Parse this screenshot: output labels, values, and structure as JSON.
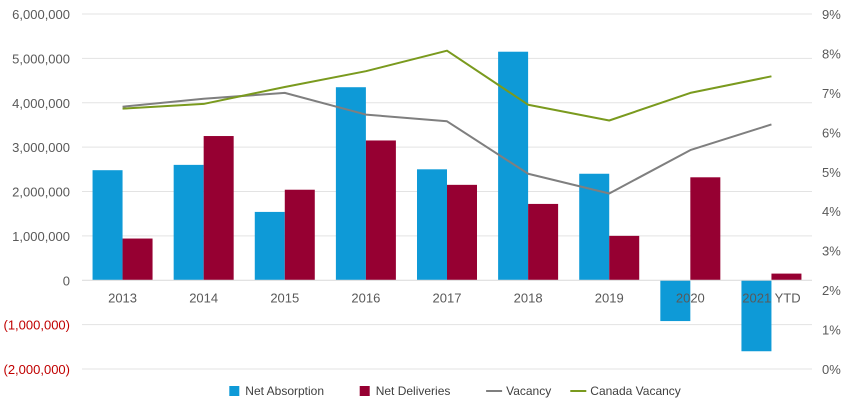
{
  "chart_data": {
    "type": "bar",
    "title": "",
    "categories": [
      "2013",
      "2014",
      "2015",
      "2016",
      "2017",
      "2018",
      "2019",
      "2020",
      "2021 YTD"
    ],
    "series": [
      {
        "name": "Net Absorption",
        "type": "bar",
        "axis": "left",
        "color": "#0e9ad7",
        "values": [
          2480000,
          2600000,
          1540000,
          4350000,
          2500000,
          5150000,
          2400000,
          -920000,
          -1600000
        ]
      },
      {
        "name": "Net Deliveries",
        "type": "bar",
        "axis": "left",
        "color": "#960032",
        "values": [
          940000,
          3250000,
          2040000,
          3150000,
          2150000,
          1720000,
          1000000,
          2320000,
          150000
        ]
      },
      {
        "name": "Vacancy",
        "type": "line",
        "axis": "right",
        "color": "#7f7f7f",
        "values": [
          6.65,
          6.85,
          7.0,
          6.45,
          6.28,
          4.95,
          4.45,
          5.55,
          6.2
        ]
      },
      {
        "name": "Canada Vacancy",
        "type": "line",
        "axis": "right",
        "color": "#7a9a1e",
        "values": [
          6.6,
          6.72,
          7.15,
          7.55,
          8.07,
          6.7,
          6.3,
          7.0,
          7.42
        ]
      }
    ],
    "y_left": {
      "min": -2000000,
      "max": 6000000,
      "step": 1000000,
      "tick_labels": [
        "(2,000,000)",
        "(1,000,000)",
        "0",
        "1,000,000",
        "2,000,000",
        "3,000,000",
        "4,000,000",
        "5,000,000",
        "6,000,000"
      ]
    },
    "y_right": {
      "min": 0,
      "max": 9,
      "step": 1,
      "tick_labels": [
        "0%",
        "1%",
        "2%",
        "3%",
        "4%",
        "5%",
        "6%",
        "7%",
        "8%",
        "9%"
      ]
    },
    "grid": true,
    "legend_position": "bottom",
    "negative_label_color": "#c00000"
  }
}
